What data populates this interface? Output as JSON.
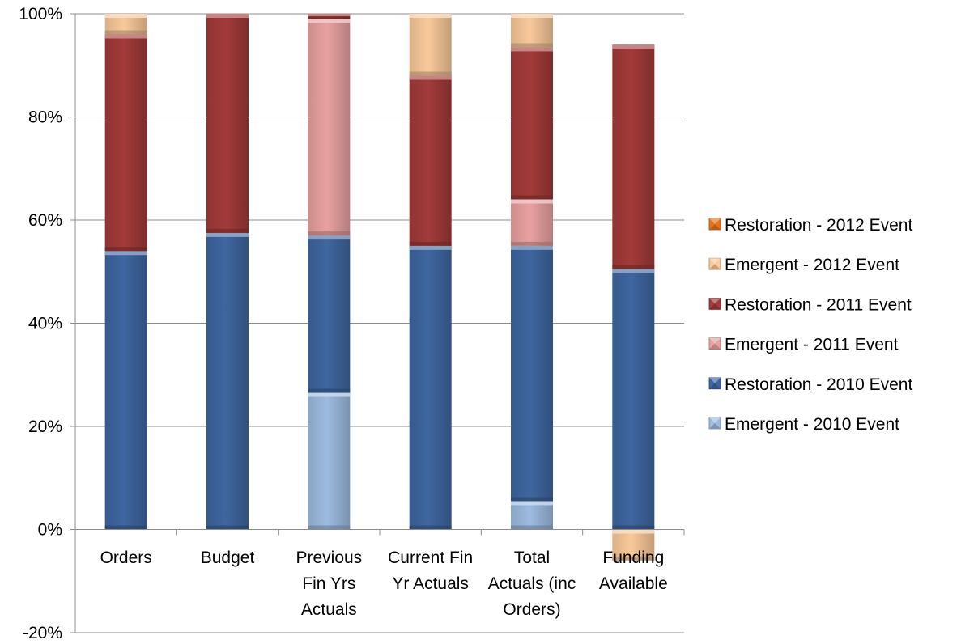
{
  "chart_data": {
    "type": "bar",
    "stacked": true,
    "categories": [
      "Orders",
      "Budget",
      "Previous Fin Yrs Actuals",
      "Current Fin Yr Actuals",
      "Total Actuals (inc Orders)",
      "Funding Available"
    ],
    "category_lines": [
      [
        "Orders"
      ],
      [
        "Budget"
      ],
      [
        "Previous",
        "Fin Yrs",
        "Actuals"
      ],
      [
        "Current Fin",
        "Yr Actuals"
      ],
      [
        "Total",
        "Actuals (inc",
        "Orders)"
      ],
      [
        "Funding",
        "Available"
      ]
    ],
    "series": [
      {
        "name": "Emergent - 2010 Event",
        "color": "#9dbbe0",
        "values": [
          0,
          0,
          26.5,
          0,
          5.5,
          0
        ]
      },
      {
        "name": "Restoration - 2010 Event",
        "color": "#3f66a0",
        "values": [
          54,
          57.5,
          30.5,
          55,
          49.5,
          50.5
        ]
      },
      {
        "name": "Emergent - 2011 Event",
        "color": "#e8a1a0",
        "values": [
          0,
          0,
          42,
          0,
          9,
          0
        ]
      },
      {
        "name": "Restoration - 2011 Event",
        "color": "#a23b39",
        "values": [
          42,
          42.5,
          1,
          33,
          29.5,
          43.5
        ]
      },
      {
        "name": "Emergent - 2012 Event",
        "color": "#f9c99a",
        "values": [
          4,
          0,
          0,
          12,
          6.5,
          -6
        ]
      },
      {
        "name": "Restoration - 2012 Event",
        "color": "#e7731c",
        "values": [
          0,
          0,
          0,
          0,
          0,
          0
        ]
      }
    ],
    "legend_order": [
      5,
      4,
      3,
      2,
      1,
      0
    ],
    "ylim": [
      -20,
      100
    ],
    "yticks": [
      -20,
      0,
      20,
      40,
      60,
      80,
      100
    ],
    "ytick_labels": [
      "-20%",
      "0%",
      "20%",
      "40%",
      "60%",
      "80%",
      "100%"
    ],
    "grid": true,
    "legend_position": "right",
    "title": "",
    "xlabel": "",
    "ylabel": ""
  }
}
